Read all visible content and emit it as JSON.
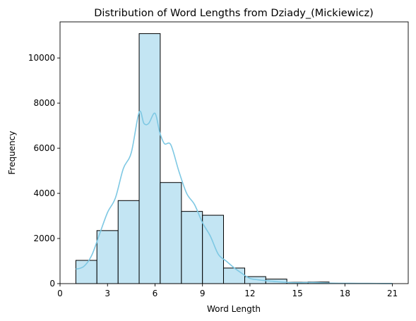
{
  "chart_data": {
    "type": "bar",
    "title": "Distribution of Word Lengths from Dziady_(Mickiewicz)",
    "xlabel": "Word Length",
    "ylabel": "Frequency",
    "xlim": [
      0,
      22
    ],
    "ylim": [
      0,
      11600
    ],
    "xticks": [
      0,
      3,
      6,
      9,
      12,
      15,
      18,
      21
    ],
    "yticks": [
      0,
      2000,
      4000,
      6000,
      8000,
      10000
    ],
    "grid": false,
    "colors": {
      "bar_fill": "#c3e5f3",
      "bar_edge": "#000000",
      "kde_line": "#7ec8e3"
    },
    "bins": [
      {
        "x0": 1.0,
        "x1": 2.33,
        "value": 1030
      },
      {
        "x0": 2.33,
        "x1": 3.67,
        "value": 2350
      },
      {
        "x0": 3.67,
        "x1": 5.0,
        "value": 3680
      },
      {
        "x0": 5.0,
        "x1": 6.33,
        "value": 11080
      },
      {
        "x0": 6.33,
        "x1": 7.67,
        "value": 4480
      },
      {
        "x0": 7.67,
        "x1": 9.0,
        "value": 3200
      },
      {
        "x0": 9.0,
        "x1": 10.33,
        "value": 3030
      },
      {
        "x0": 10.33,
        "x1": 11.67,
        "value": 690
      },
      {
        "x0": 11.67,
        "x1": 13.0,
        "value": 310
      },
      {
        "x0": 13.0,
        "x1": 14.33,
        "value": 200
      },
      {
        "x0": 14.33,
        "x1": 15.67,
        "value": 60
      },
      {
        "x0": 15.67,
        "x1": 17.0,
        "value": 70
      },
      {
        "x0": 17.0,
        "x1": 18.33,
        "value": 0
      },
      {
        "x0": 18.33,
        "x1": 19.67,
        "value": 0
      },
      {
        "x0": 19.67,
        "x1": 21.0,
        "value": 0
      }
    ],
    "kde": {
      "x": [
        1.0,
        1.5,
        2.0,
        2.5,
        3.0,
        3.5,
        4.0,
        4.5,
        5.0,
        5.3,
        5.6,
        6.0,
        6.3,
        6.6,
        7.0,
        7.5,
        8.0,
        8.5,
        9.0,
        9.5,
        10.0,
        10.5,
        11.0,
        11.5,
        12.0,
        12.5,
        13.0,
        13.5,
        14.0,
        14.5,
        15.0,
        16.0,
        17.0,
        18.0,
        19.0,
        20.0,
        21.0
      ],
      "y": [
        640,
        760,
        1250,
        2200,
        3150,
        3800,
        5100,
        5800,
        7600,
        7100,
        7100,
        7550,
        6700,
        6200,
        6150,
        5000,
        4000,
        3500,
        2700,
        2100,
        1300,
        1000,
        700,
        450,
        230,
        170,
        130,
        100,
        70,
        50,
        40,
        50,
        20,
        15,
        10,
        8,
        5
      ]
    }
  }
}
